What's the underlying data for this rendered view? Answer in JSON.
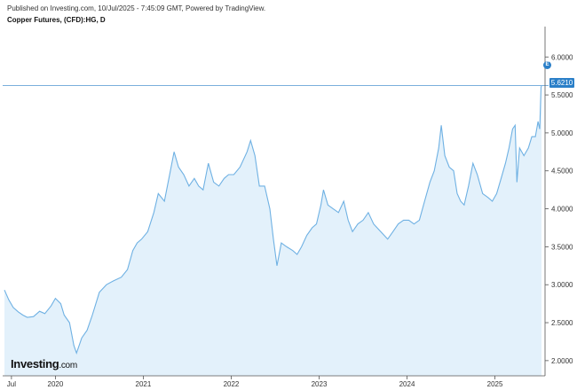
{
  "header": {
    "published": "Published on Investing.com, 10/Jul/2025 - 7:45:09 GMT, Powered by TradingView.",
    "subtitle": "Copper Futures, (CFD):HG, D"
  },
  "logo": {
    "main": "Investing",
    "suffix": ".com"
  },
  "price_label": "5.6210",
  "marker_label": "E",
  "colors": {
    "line": "#6fb1e3",
    "fill": "#e3f1fb",
    "tag": "#2a7fc8",
    "axis": "#555555"
  },
  "chart_data": {
    "type": "area",
    "title": "",
    "xlabel": "",
    "ylabel": "",
    "ylim": [
      1.8,
      6.4
    ],
    "xlim": [
      2019.4,
      2025.56
    ],
    "y_ticks": [
      {
        "value": 2.0,
        "label": "2.0000"
      },
      {
        "value": 2.5,
        "label": "2.5000"
      },
      {
        "value": 3.0,
        "label": "3.0000"
      },
      {
        "value": 3.5,
        "label": "3.5000"
      },
      {
        "value": 4.0,
        "label": "4.0000"
      },
      {
        "value": 4.5,
        "label": "4.5000"
      },
      {
        "value": 5.0,
        "label": "5.0000"
      },
      {
        "value": 5.5,
        "label": "5.5000"
      },
      {
        "value": 6.0,
        "label": "6.0000"
      }
    ],
    "x_ticks": [
      {
        "value": 2019.5,
        "label": "Jul"
      },
      {
        "value": 2020.0,
        "label": "2020"
      },
      {
        "value": 2021.0,
        "label": "2021"
      },
      {
        "value": 2022.0,
        "label": "2022"
      },
      {
        "value": 2023.0,
        "label": "2023"
      },
      {
        "value": 2024.0,
        "label": "2024"
      },
      {
        "value": 2025.0,
        "label": "2025"
      }
    ],
    "last_price": 5.621,
    "series": [
      {
        "values": [
          [
            2019.42,
            2.93
          ],
          [
            2019.47,
            2.8
          ],
          [
            2019.52,
            2.7
          ],
          [
            2019.58,
            2.64
          ],
          [
            2019.63,
            2.6
          ],
          [
            2019.68,
            2.57
          ],
          [
            2019.75,
            2.58
          ],
          [
            2019.82,
            2.65
          ],
          [
            2019.88,
            2.62
          ],
          [
            2019.95,
            2.72
          ],
          [
            2020.0,
            2.82
          ],
          [
            2020.06,
            2.75
          ],
          [
            2020.1,
            2.6
          ],
          [
            2020.16,
            2.5
          ],
          [
            2020.21,
            2.2
          ],
          [
            2020.24,
            2.1
          ],
          [
            2020.3,
            2.3
          ],
          [
            2020.36,
            2.4
          ],
          [
            2020.42,
            2.6
          ],
          [
            2020.5,
            2.9
          ],
          [
            2020.58,
            3.0
          ],
          [
            2020.66,
            3.05
          ],
          [
            2020.75,
            3.1
          ],
          [
            2020.82,
            3.2
          ],
          [
            2020.88,
            3.45
          ],
          [
            2020.93,
            3.55
          ],
          [
            2020.98,
            3.6
          ],
          [
            2021.05,
            3.7
          ],
          [
            2021.12,
            3.95
          ],
          [
            2021.17,
            4.2
          ],
          [
            2021.24,
            4.1
          ],
          [
            2021.3,
            4.45
          ],
          [
            2021.35,
            4.75
          ],
          [
            2021.4,
            4.55
          ],
          [
            2021.46,
            4.45
          ],
          [
            2021.52,
            4.3
          ],
          [
            2021.58,
            4.4
          ],
          [
            2021.63,
            4.3
          ],
          [
            2021.68,
            4.25
          ],
          [
            2021.74,
            4.6
          ],
          [
            2021.8,
            4.35
          ],
          [
            2021.86,
            4.3
          ],
          [
            2021.92,
            4.4
          ],
          [
            2021.97,
            4.45
          ],
          [
            2022.03,
            4.45
          ],
          [
            2022.1,
            4.55
          ],
          [
            2022.18,
            4.75
          ],
          [
            2022.22,
            4.9
          ],
          [
            2022.27,
            4.7
          ],
          [
            2022.32,
            4.3
          ],
          [
            2022.38,
            4.3
          ],
          [
            2022.44,
            4.0
          ],
          [
            2022.48,
            3.6
          ],
          [
            2022.52,
            3.25
          ],
          [
            2022.57,
            3.55
          ],
          [
            2022.63,
            3.5
          ],
          [
            2022.7,
            3.45
          ],
          [
            2022.75,
            3.4
          ],
          [
            2022.8,
            3.5
          ],
          [
            2022.86,
            3.65
          ],
          [
            2022.92,
            3.75
          ],
          [
            2022.97,
            3.8
          ],
          [
            2023.02,
            4.05
          ],
          [
            2023.05,
            4.25
          ],
          [
            2023.1,
            4.05
          ],
          [
            2023.16,
            4.0
          ],
          [
            2023.22,
            3.95
          ],
          [
            2023.28,
            4.1
          ],
          [
            2023.33,
            3.85
          ],
          [
            2023.38,
            3.7
          ],
          [
            2023.44,
            3.8
          ],
          [
            2023.5,
            3.85
          ],
          [
            2023.56,
            3.95
          ],
          [
            2023.62,
            3.8
          ],
          [
            2023.7,
            3.7
          ],
          [
            2023.78,
            3.6
          ],
          [
            2023.84,
            3.7
          ],
          [
            2023.9,
            3.8
          ],
          [
            2023.96,
            3.85
          ],
          [
            2024.02,
            3.85
          ],
          [
            2024.08,
            3.8
          ],
          [
            2024.14,
            3.85
          ],
          [
            2024.2,
            4.1
          ],
          [
            2024.26,
            4.35
          ],
          [
            2024.31,
            4.5
          ],
          [
            2024.36,
            4.8
          ],
          [
            2024.39,
            5.1
          ],
          [
            2024.43,
            4.7
          ],
          [
            2024.48,
            4.55
          ],
          [
            2024.53,
            4.5
          ],
          [
            2024.57,
            4.2
          ],
          [
            2024.61,
            4.1
          ],
          [
            2024.65,
            4.05
          ],
          [
            2024.7,
            4.3
          ],
          [
            2024.75,
            4.6
          ],
          [
            2024.8,
            4.45
          ],
          [
            2024.86,
            4.2
          ],
          [
            2024.92,
            4.15
          ],
          [
            2024.97,
            4.1
          ],
          [
            2025.02,
            4.2
          ],
          [
            2025.07,
            4.4
          ],
          [
            2025.12,
            4.6
          ],
          [
            2025.16,
            4.8
          ],
          [
            2025.2,
            5.05
          ],
          [
            2025.23,
            5.1
          ],
          [
            2025.25,
            4.35
          ],
          [
            2025.28,
            4.8
          ],
          [
            2025.33,
            4.7
          ],
          [
            2025.38,
            4.8
          ],
          [
            2025.42,
            4.95
          ],
          [
            2025.46,
            4.95
          ],
          [
            2025.49,
            5.15
          ],
          [
            2025.51,
            5.05
          ],
          [
            2025.525,
            5.6
          ],
          [
            2025.53,
            5.62
          ]
        ]
      }
    ]
  }
}
